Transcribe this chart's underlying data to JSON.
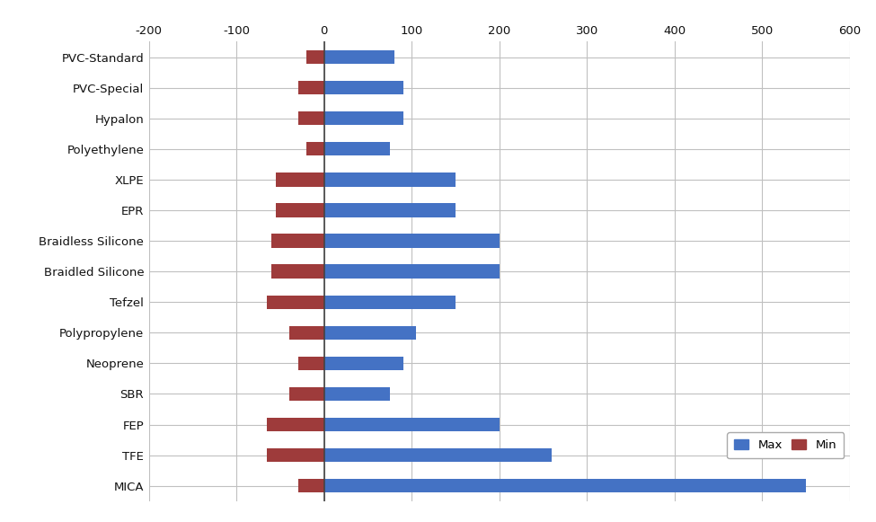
{
  "categories": [
    "PVC-Standard",
    "PVC-Special",
    "Hypalon",
    "Polyethylene",
    "XLPE",
    "EPR",
    "Braidless Silicone",
    "Braidled Silicone",
    "Tefzel",
    "Polypropylene",
    "Neoprene",
    "SBR",
    "FEP",
    "TFE",
    "MICA"
  ],
  "min_values": [
    -20,
    -30,
    -30,
    -20,
    -55,
    -55,
    -60,
    -60,
    -65,
    -40,
    -30,
    -40,
    -65,
    -65,
    -30
  ],
  "max_values": [
    80,
    90,
    90,
    75,
    150,
    150,
    200,
    200,
    150,
    105,
    90,
    75,
    200,
    260,
    550
  ],
  "bar_color_max": "#4472C4",
  "bar_color_min": "#9E3B3B",
  "background_color": "#FFFFFF",
  "grid_color": "#C0C0C0",
  "xlim": [
    -200,
    600
  ],
  "xticks": [
    -200,
    -100,
    0,
    100,
    200,
    300,
    400,
    500,
    600
  ],
  "legend_labels": [
    "Max",
    "Min"
  ],
  "bar_height": 0.45,
  "figwidth": 9.75,
  "figheight": 5.81,
  "dpi": 100
}
